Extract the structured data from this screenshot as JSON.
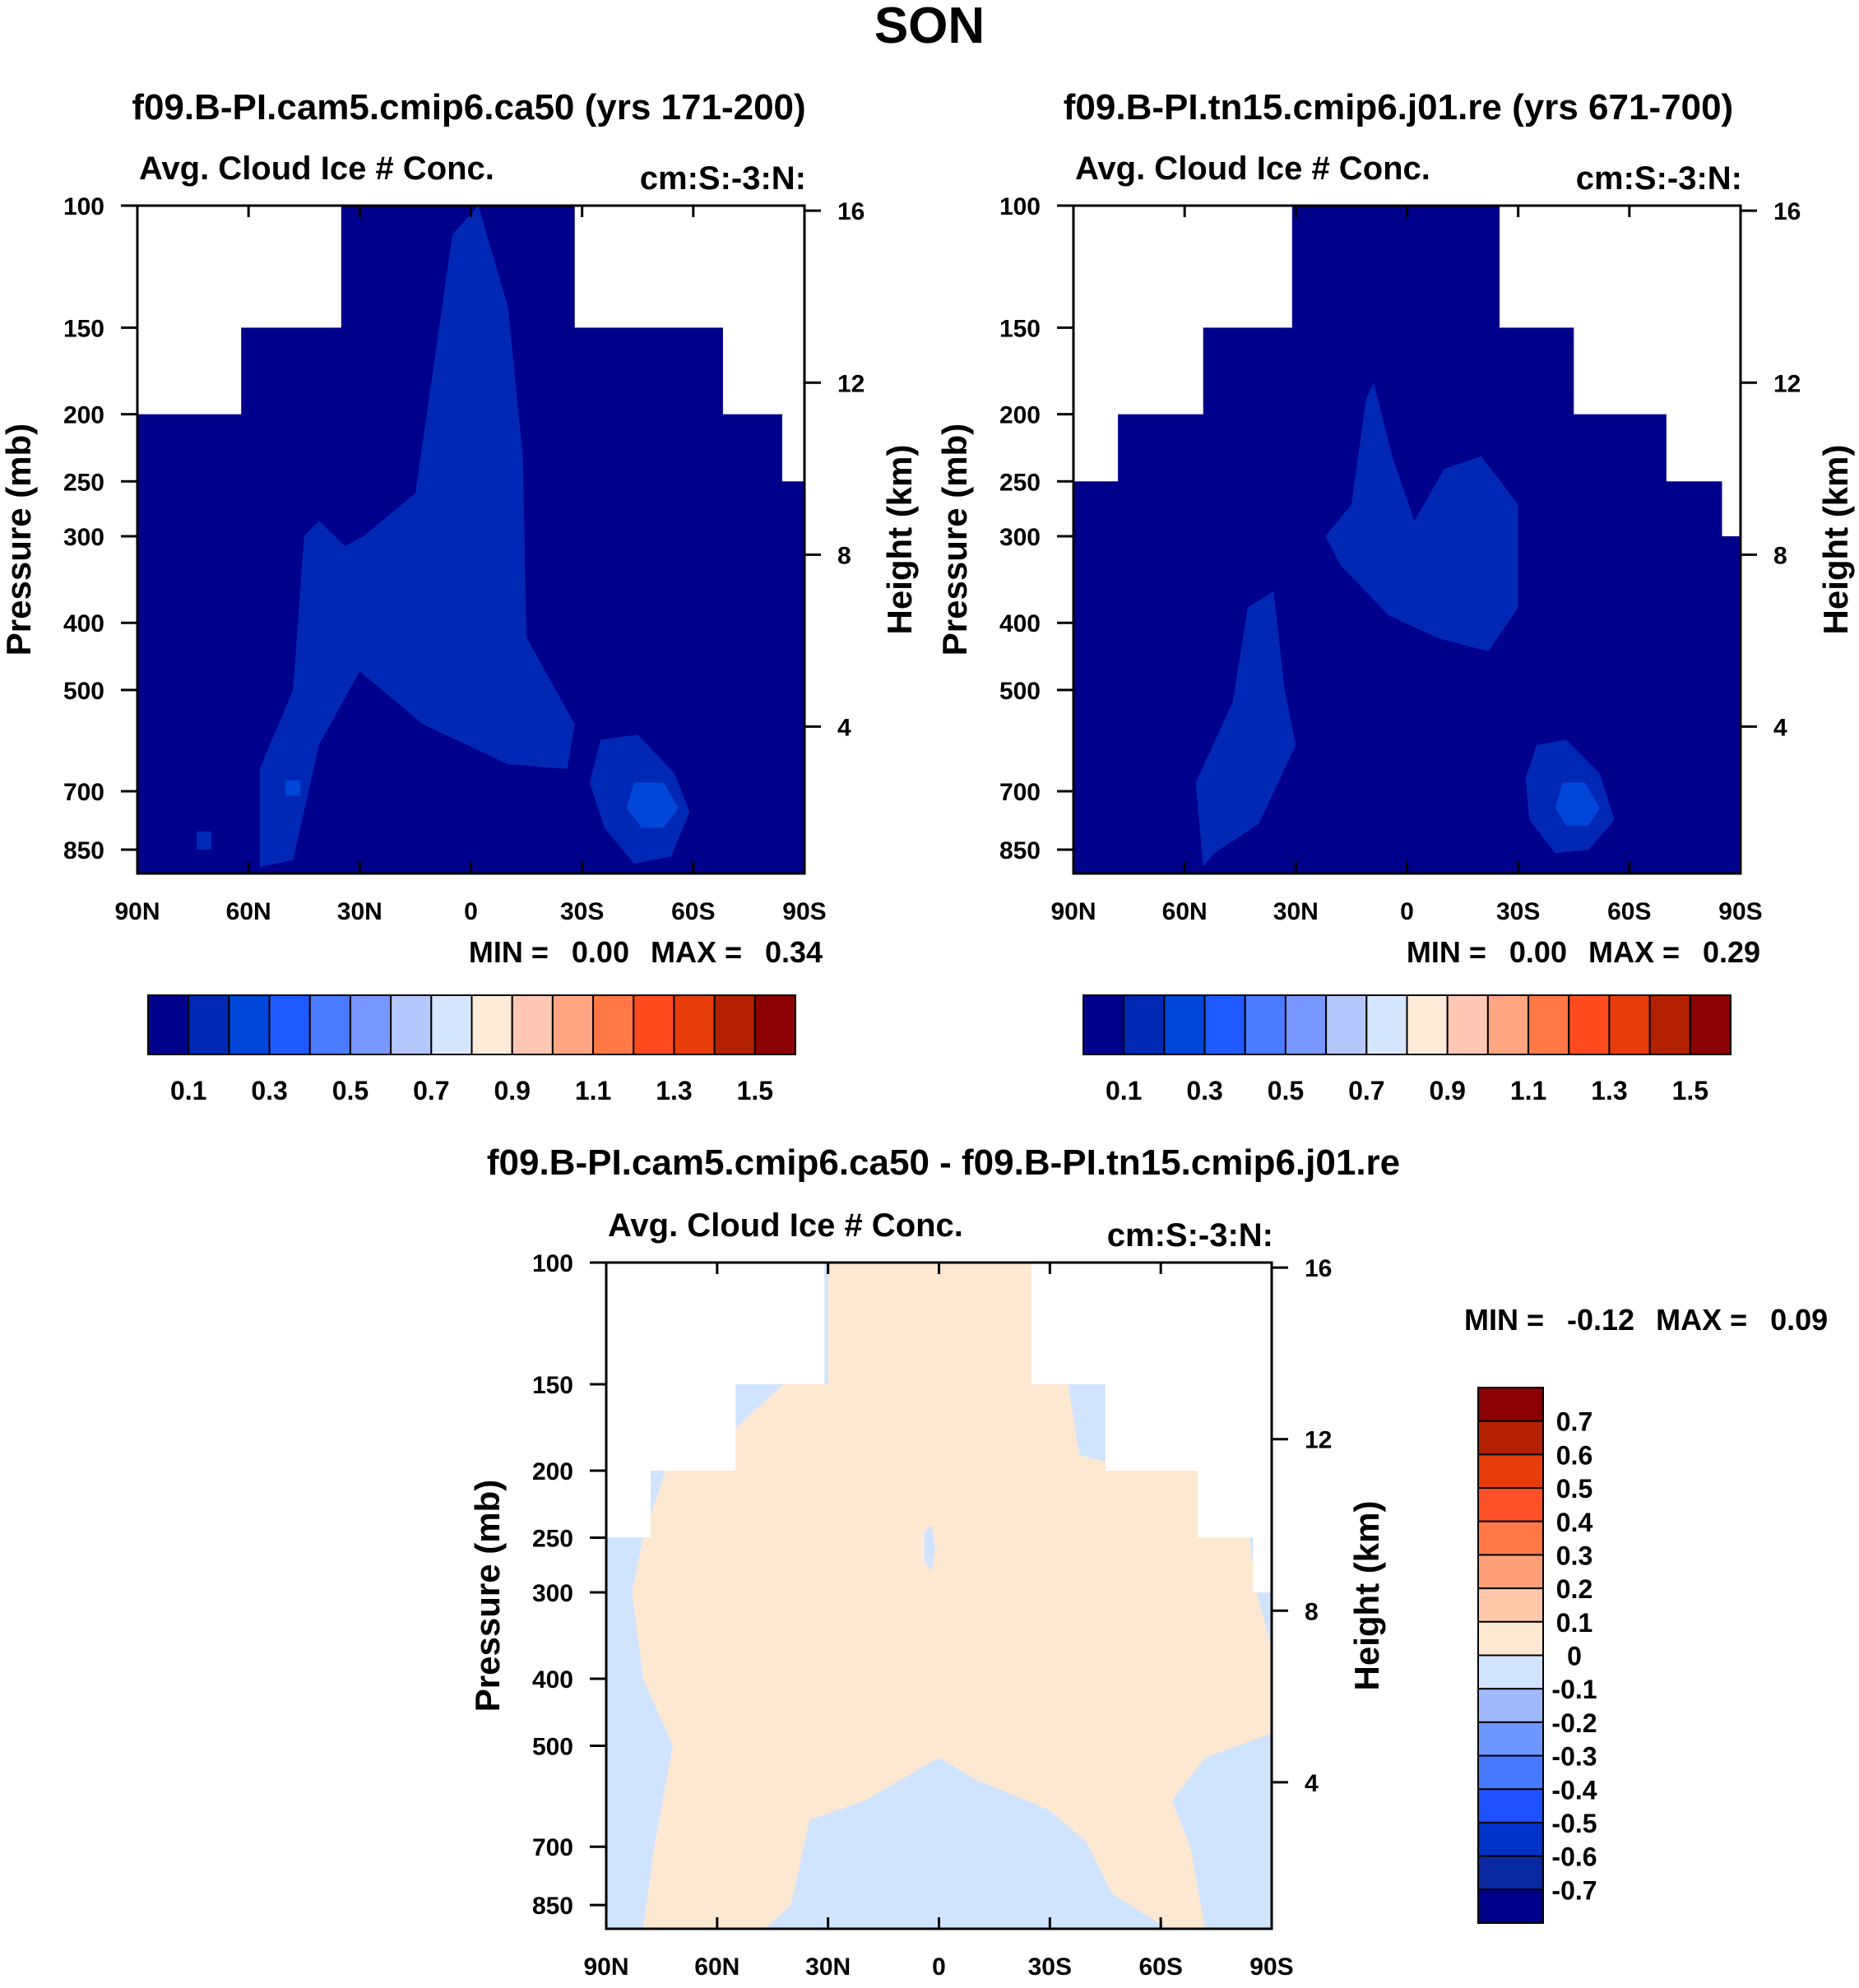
{
  "figure": {
    "season_title": "SON"
  },
  "palettes": {
    "abs": [
      "#00008b",
      "#0028b4",
      "#0046d8",
      "#1e5aff",
      "#4b7cff",
      "#7896ff",
      "#b4c8ff",
      "#d7e6ff",
      "#ffebd7",
      "#ffc8b4",
      "#ffa582",
      "#ff7846",
      "#ff4b1e",
      "#e63c0a",
      "#b42100",
      "#8b0000"
    ],
    "diff": [
      "#00008b",
      "#0a28a0",
      "#0032c8",
      "#1e50ff",
      "#4678ff",
      "#6e96ff",
      "#a0b9ff",
      "#d0e4ff",
      "#ffe8d2",
      "#ffc8aa",
      "#ffa078",
      "#ff7846",
      "#ff5028",
      "#e63c0a",
      "#b42100",
      "#8b0000"
    ]
  },
  "chart_data": [
    {
      "id": "panel-1",
      "type": "contour",
      "title": "f09.B-PI.cam5.cmip6.ca50 (yrs 171-200)",
      "left_label": "Avg. Cloud Ice # Conc.",
      "right_label": "cm:S:-3:N:",
      "ylabel": "Pressure (mb)",
      "y2label": "Height (km)",
      "xlim": [
        90,
        -90
      ],
      "x_ticks": [
        90,
        60,
        30,
        0,
        -30,
        -60,
        -90
      ],
      "x_tick_labels": [
        "90N",
        "60N",
        "30N",
        "0",
        "30S",
        "60S",
        "90S"
      ],
      "p_ticks": [
        100,
        150,
        200,
        250,
        300,
        400,
        500,
        700,
        850
      ],
      "p_tick_labels": [
        "100",
        "150",
        "200",
        "250",
        "300",
        "400",
        "500",
        "700",
        "850"
      ],
      "h_ticks": [
        16,
        12,
        8,
        4
      ],
      "h_tick_labels": [
        "16",
        "12",
        "8",
        "4"
      ],
      "min_label": "MIN =",
      "min_value": "0.00",
      "max_label": "MAX =",
      "max_value": "0.34",
      "palette": "abs",
      "base_color_index": 0,
      "domain": [
        [
          90,
          200
        ],
        [
          62,
          200
        ],
        [
          62,
          150
        ],
        [
          35,
          150
        ],
        [
          35,
          100
        ],
        [
          -28,
          100
        ],
        [
          -28,
          150
        ],
        [
          -68,
          150
        ],
        [
          -68,
          200
        ],
        [
          -84,
          200
        ],
        [
          -84,
          250
        ],
        [
          -90,
          250
        ],
        [
          -90,
          920
        ],
        [
          32,
          920
        ],
        [
          32,
          670
        ],
        [
          -23,
          670
        ],
        [
          -23,
          920
        ],
        [
          90,
          920
        ]
      ],
      "features": [
        {
          "color_index": 1,
          "points": [
            [
              57,
              900
            ],
            [
              57,
              650
            ],
            [
              48,
              500
            ],
            [
              45,
              300
            ],
            [
              41,
              285
            ],
            [
              34,
              310
            ],
            [
              29,
              300
            ],
            [
              15,
              260
            ],
            [
              10,
              170
            ],
            [
              5,
              110
            ],
            [
              -2,
              100
            ],
            [
              -10,
              140
            ],
            [
              -14,
              230
            ],
            [
              -15,
              420
            ],
            [
              -28,
              560
            ],
            [
              -26,
              650
            ],
            [
              -10,
              640
            ],
            [
              13,
              560
            ],
            [
              30,
              470
            ],
            [
              41,
              600
            ],
            [
              48,
              880
            ]
          ]
        },
        {
          "color_index": 1,
          "points": [
            [
              -35,
              590
            ],
            [
              -45,
              580
            ],
            [
              -55,
              660
            ],
            [
              -59,
              750
            ],
            [
              -54,
              870
            ],
            [
              -44,
              890
            ],
            [
              -36,
              790
            ],
            [
              -32,
              680
            ]
          ]
        },
        {
          "color_index": 2,
          "points": [
            [
              -44,
              680
            ],
            [
              -52,
              680
            ],
            [
              -56,
              740
            ],
            [
              -52,
              790
            ],
            [
              -46,
              790
            ],
            [
              -42,
              740
            ]
          ]
        },
        {
          "color_index": 2,
          "points": [
            [
              50,
              675
            ],
            [
              46,
              675
            ],
            [
              46,
              710
            ],
            [
              50,
              710
            ]
          ]
        },
        {
          "color_index": 1,
          "points": [
            [
              8,
              290
            ],
            [
              9,
              290
            ],
            [
              9,
              320
            ],
            [
              8,
              320
            ]
          ]
        },
        {
          "color_index": 1,
          "points": [
            [
              74,
              800
            ],
            [
              70,
              800
            ],
            [
              70,
              850
            ],
            [
              74,
              850
            ]
          ]
        }
      ]
    },
    {
      "id": "panel-2",
      "type": "contour",
      "title": "f09.B-PI.tn15.cmip6.j01.re (yrs 671-700)",
      "left_label": "Avg. Cloud Ice # Conc.",
      "right_label": "cm:S:-3:N:",
      "ylabel": "Pressure (mb)",
      "y2label": "Height (km)",
      "xlim": [
        90,
        -90
      ],
      "x_ticks": [
        90,
        60,
        30,
        0,
        -30,
        -60,
        -90
      ],
      "x_tick_labels": [
        "90N",
        "60N",
        "30N",
        "0",
        "30S",
        "60S",
        "90S"
      ],
      "p_ticks": [
        100,
        150,
        200,
        250,
        300,
        400,
        500,
        700,
        850
      ],
      "p_tick_labels": [
        "100",
        "150",
        "200",
        "250",
        "300",
        "400",
        "500",
        "700",
        "850"
      ],
      "h_ticks": [
        16,
        12,
        8,
        4
      ],
      "h_tick_labels": [
        "16",
        "12",
        "8",
        "4"
      ],
      "min_label": "MIN =",
      "min_value": "0.00",
      "max_label": "MAX =",
      "max_value": "0.29",
      "palette": "abs",
      "base_color_index": 0,
      "domain": [
        [
          90,
          250
        ],
        [
          78,
          250
        ],
        [
          78,
          200
        ],
        [
          55,
          200
        ],
        [
          55,
          150
        ],
        [
          31,
          150
        ],
        [
          31,
          100
        ],
        [
          -25,
          100
        ],
        [
          -25,
          150
        ],
        [
          -45,
          150
        ],
        [
          -45,
          200
        ],
        [
          -70,
          200
        ],
        [
          -70,
          250
        ],
        [
          -85,
          250
        ],
        [
          -85,
          300
        ],
        [
          -90,
          300
        ],
        [
          -90,
          920
        ],
        [
          30,
          920
        ],
        [
          30,
          670
        ],
        [
          -25,
          670
        ],
        [
          -25,
          920
        ],
        [
          90,
          920
        ]
      ],
      "features": [
        {
          "color_index": 1,
          "points": [
            [
              55,
              900
            ],
            [
              57,
              680
            ],
            [
              47,
              520
            ],
            [
              43,
              380
            ],
            [
              36,
              360
            ],
            [
              33,
              500
            ],
            [
              30,
              600
            ],
            [
              40,
              780
            ],
            [
              52,
              860
            ]
          ]
        },
        {
          "color_index": 1,
          "points": [
            [
              22,
              300
            ],
            [
              15,
              270
            ],
            [
              11,
              190
            ],
            [
              9,
              180
            ],
            [
              4,
              230
            ],
            [
              -2,
              285
            ],
            [
              -10,
              240
            ],
            [
              -20,
              230
            ],
            [
              -30,
              270
            ],
            [
              -30,
              380
            ],
            [
              -22,
              440
            ],
            [
              -8,
              420
            ],
            [
              5,
              390
            ],
            [
              18,
              330
            ]
          ]
        },
        {
          "color_index": 1,
          "points": [
            [
              -35,
              600
            ],
            [
              -43,
              590
            ],
            [
              -52,
              660
            ],
            [
              -56,
              770
            ],
            [
              -49,
              850
            ],
            [
              -40,
              860
            ],
            [
              -33,
              770
            ],
            [
              -32,
              670
            ]
          ]
        },
        {
          "color_index": 2,
          "points": [
            [
              -42,
              680
            ],
            [
              -48,
              680
            ],
            [
              -52,
              740
            ],
            [
              -49,
              785
            ],
            [
              -43,
              785
            ],
            [
              -40,
              740
            ]
          ]
        }
      ]
    },
    {
      "id": "panel-3",
      "type": "contour",
      "title": "f09.B-PI.cam5.cmip6.ca50 - f09.B-PI.tn15.cmip6.j01.re",
      "left_label": "Avg. Cloud Ice # Conc.",
      "right_label": "cm:S:-3:N:",
      "ylabel": "Pressure (mb)",
      "y2label": "Height (km)",
      "xlim": [
        90,
        -90
      ],
      "x_ticks": [
        90,
        60,
        30,
        0,
        -30,
        -60,
        -90
      ],
      "x_tick_labels": [
        "90N",
        "60N",
        "30N",
        "0",
        "30S",
        "60S",
        "90S"
      ],
      "p_ticks": [
        100,
        150,
        200,
        250,
        300,
        400,
        500,
        700,
        850
      ],
      "p_tick_labels": [
        "100",
        "150",
        "200",
        "250",
        "300",
        "400",
        "500",
        "700",
        "850"
      ],
      "h_ticks": [
        16,
        12,
        8,
        4
      ],
      "h_tick_labels": [
        "16",
        "12",
        "8",
        "4"
      ],
      "min_label": "MIN =",
      "min_value": "-0.12",
      "max_label": "MAX =",
      "max_value": "0.09",
      "palette": "diff",
      "base_color_index": 7,
      "domain": [
        [
          90,
          250
        ],
        [
          78,
          250
        ],
        [
          78,
          200
        ],
        [
          55,
          200
        ],
        [
          55,
          150
        ],
        [
          31,
          150
        ],
        [
          31,
          100
        ],
        [
          -25,
          100
        ],
        [
          -25,
          150
        ],
        [
          -45,
          150
        ],
        [
          -45,
          200
        ],
        [
          -70,
          200
        ],
        [
          -70,
          250
        ],
        [
          -85,
          250
        ],
        [
          -85,
          300
        ],
        [
          -90,
          300
        ],
        [
          -90,
          920
        ],
        [
          30,
          920
        ],
        [
          30,
          670
        ],
        [
          -25,
          670
        ],
        [
          -25,
          920
        ],
        [
          90,
          920
        ]
      ],
      "features": [
        {
          "color_index": 8,
          "points": [
            [
              80,
              920
            ],
            [
              77,
              700
            ],
            [
              72,
              500
            ],
            [
              80,
              400
            ],
            [
              83,
              300
            ],
            [
              80,
              250
            ],
            [
              74,
              200
            ],
            [
              68,
              200
            ],
            [
              42,
              150
            ],
            [
              30,
              150
            ],
            [
              30,
              100
            ],
            [
              -25,
              100
            ],
            [
              -25,
              150
            ],
            [
              -35,
              150
            ],
            [
              -38,
              190
            ],
            [
              -55,
              200
            ],
            [
              -70,
              200
            ],
            [
              -70,
              250
            ],
            [
              -84,
              250
            ],
            [
              -86,
              300
            ],
            [
              -88,
              330
            ],
            [
              -90,
              360
            ],
            [
              -90,
              480
            ],
            [
              -72,
              520
            ],
            [
              -63,
              600
            ],
            [
              -68,
              700
            ],
            [
              -72,
              920
            ],
            [
              -62,
              920
            ],
            [
              -47,
              820
            ],
            [
              -40,
              690
            ],
            [
              -30,
              620
            ],
            [
              -10,
              560
            ],
            [
              0,
              520
            ],
            [
              20,
              600
            ],
            [
              35,
              640
            ],
            [
              40,
              850
            ],
            [
              47,
              920
            ]
          ]
        },
        {
          "color_index": 7,
          "points": [
            [
              4,
              245
            ],
            [
              2,
              240
            ],
            [
              1,
              260
            ],
            [
              2,
              280
            ],
            [
              4,
              270
            ]
          ]
        }
      ],
      "min_max_position": "right",
      "colorbar_orientation": "vertical"
    }
  ],
  "colorbars": [
    {
      "id": "colorbar-1",
      "palette": "abs",
      "labels": [
        "0.1",
        "0.3",
        "0.5",
        "0.7",
        "0.9",
        "1.1",
        "1.3",
        "1.5"
      ]
    },
    {
      "id": "colorbar-2",
      "palette": "abs",
      "labels": [
        "0.1",
        "0.3",
        "0.5",
        "0.7",
        "0.9",
        "1.1",
        "1.3",
        "1.5"
      ]
    },
    {
      "id": "colorbar-3",
      "palette": "diff",
      "labels": [
        "0.7",
        "0.6",
        "0.5",
        "0.4",
        "0.3",
        "0.2",
        "0.1",
        "0",
        "-0.1",
        "-0.2",
        "-0.3",
        "-0.4",
        "-0.5",
        "-0.6",
        "-0.7"
      ]
    }
  ]
}
